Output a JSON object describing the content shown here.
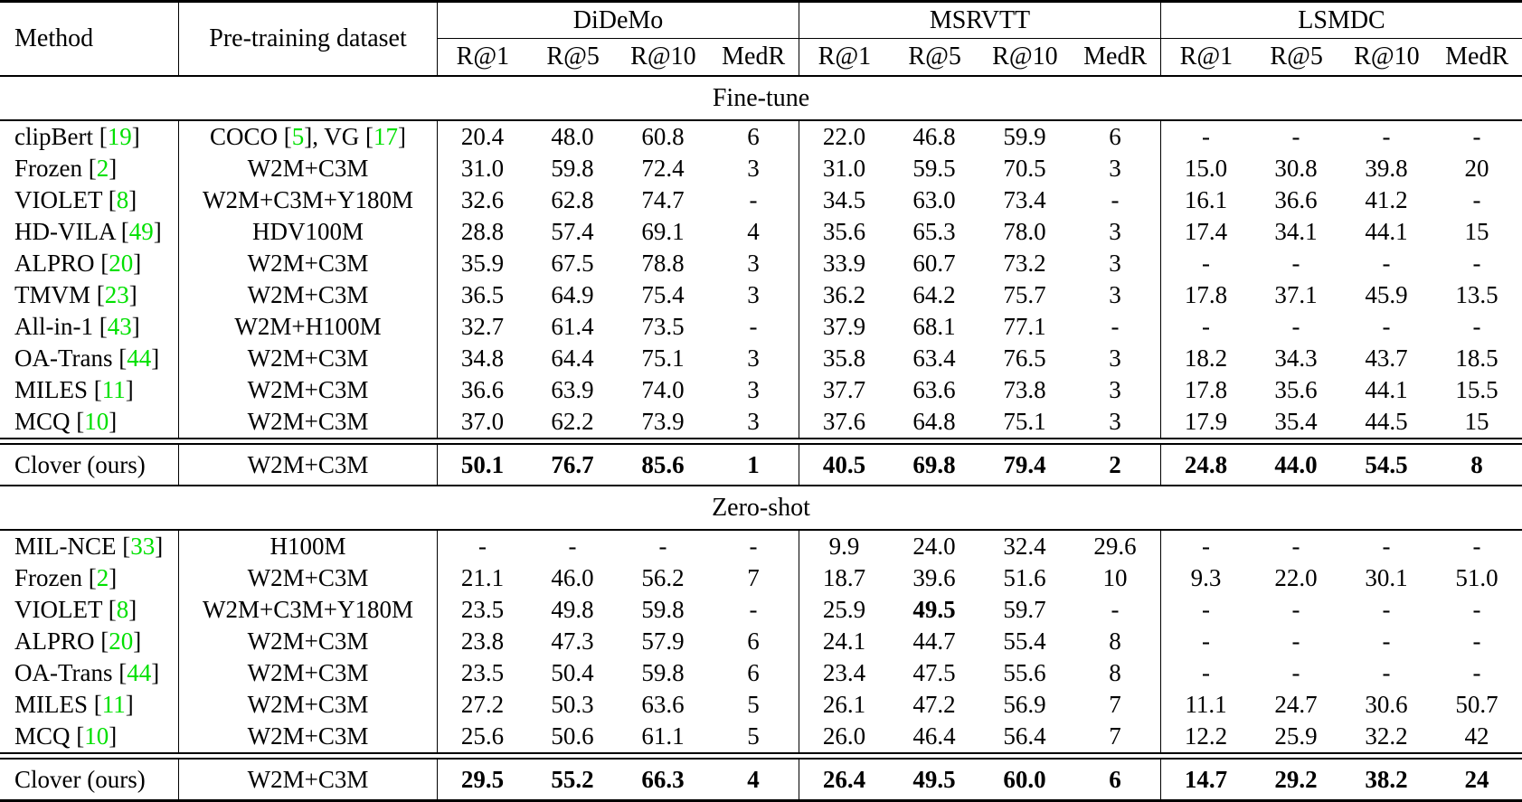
{
  "colors": {
    "citation_green": "#00E000"
  },
  "table": {
    "header": {
      "method": "Method",
      "pretrain": "Pre-training dataset"
    },
    "groups": [
      {
        "label": "DiDeMo",
        "metrics": [
          "R@1",
          "R@5",
          "R@10",
          "MedR"
        ]
      },
      {
        "label": "MSRVTT",
        "metrics": [
          "R@1",
          "R@5",
          "R@10",
          "MedR"
        ]
      },
      {
        "label": "LSMDC",
        "metrics": [
          "R@1",
          "R@5",
          "R@10",
          "MedR"
        ]
      }
    ],
    "sections": [
      {
        "label": "Fine-tune",
        "rows": [
          {
            "method": "clipBert [19]",
            "pretrain": "COCO [5], VG [17]",
            "values": [
              "20.4",
              "48.0",
              "60.8",
              "6",
              "22.0",
              "46.8",
              "59.9",
              "6",
              "-",
              "-",
              "-",
              "-"
            ]
          },
          {
            "method": "Frozen [2]",
            "pretrain": "W2M+C3M",
            "values": [
              "31.0",
              "59.8",
              "72.4",
              "3",
              "31.0",
              "59.5",
              "70.5",
              "3",
              "15.0",
              "30.8",
              "39.8",
              "20"
            ]
          },
          {
            "method": "VIOLET [8]",
            "pretrain": "W2M+C3M+Y180M",
            "values": [
              "32.6",
              "62.8",
              "74.7",
              "-",
              "34.5",
              "63.0",
              "73.4",
              "-",
              "16.1",
              "36.6",
              "41.2",
              "-"
            ]
          },
          {
            "method": "HD-VILA [49]",
            "pretrain": "HDV100M",
            "values": [
              "28.8",
              "57.4",
              "69.1",
              "4",
              "35.6",
              "65.3",
              "78.0",
              "3",
              "17.4",
              "34.1",
              "44.1",
              "15"
            ]
          },
          {
            "method": "ALPRO [20]",
            "pretrain": "W2M+C3M",
            "values": [
              "35.9",
              "67.5",
              "78.8",
              "3",
              "33.9",
              "60.7",
              "73.2",
              "3",
              "-",
              "-",
              "-",
              "-"
            ]
          },
          {
            "method": "TMVM [23]",
            "pretrain": "W2M+C3M",
            "values": [
              "36.5",
              "64.9",
              "75.4",
              "3",
              "36.2",
              "64.2",
              "75.7",
              "3",
              "17.8",
              "37.1",
              "45.9",
              "13.5"
            ]
          },
          {
            "method": "All-in-1 [43]",
            "pretrain": "W2M+H100M",
            "values": [
              "32.7",
              "61.4",
              "73.5",
              "-",
              "37.9",
              "68.1",
              "77.1",
              "-",
              "-",
              "-",
              "-",
              "-"
            ]
          },
          {
            "method": "OA-Trans [44]",
            "pretrain": "W2M+C3M",
            "values": [
              "34.8",
              "64.4",
              "75.1",
              "3",
              "35.8",
              "63.4",
              "76.5",
              "3",
              "18.2",
              "34.3",
              "43.7",
              "18.5"
            ]
          },
          {
            "method": "MILES [11]",
            "pretrain": "W2M+C3M",
            "values": [
              "36.6",
              "63.9",
              "74.0",
              "3",
              "37.7",
              "63.6",
              "73.8",
              "3",
              "17.8",
              "35.6",
              "44.1",
              "15.5"
            ]
          },
          {
            "method": "MCQ [10]",
            "pretrain": "W2M+C3M",
            "values": [
              "37.0",
              "62.2",
              "73.9",
              "3",
              "37.6",
              "64.8",
              "75.1",
              "3",
              "17.9",
              "35.4",
              "44.5",
              "15"
            ]
          }
        ],
        "final_row": {
          "method": "Clover (ours)",
          "pretrain": "W2M+C3M",
          "bold": true,
          "values": [
            "50.1",
            "76.7",
            "85.6",
            "1",
            "40.5",
            "69.8",
            "79.4",
            "2",
            "24.8",
            "44.0",
            "54.5",
            "8"
          ]
        }
      },
      {
        "label": "Zero-shot",
        "rows": [
          {
            "method": "MIL-NCE [33]",
            "pretrain": "H100M",
            "values": [
              "-",
              "-",
              "-",
              "-",
              "9.9",
              "24.0",
              "32.4",
              "29.6",
              "-",
              "-",
              "-",
              "-"
            ]
          },
          {
            "method": "Frozen [2]",
            "pretrain": "W2M+C3M",
            "values": [
              "21.1",
              "46.0",
              "56.2",
              "7",
              "18.7",
              "39.6",
              "51.6",
              "10",
              "9.3",
              "22.0",
              "30.1",
              "51.0"
            ]
          },
          {
            "method": "VIOLET [8]",
            "pretrain": "W2M+C3M+Y180M",
            "bold_idx": [
              5
            ],
            "values": [
              "23.5",
              "49.8",
              "59.8",
              "-",
              "25.9",
              "49.5",
              "59.7",
              "-",
              "-",
              "-",
              "-",
              "-"
            ]
          },
          {
            "method": "ALPRO [20]",
            "pretrain": "W2M+C3M",
            "values": [
              "23.8",
              "47.3",
              "57.9",
              "6",
              "24.1",
              "44.7",
              "55.4",
              "8",
              "-",
              "-",
              "-",
              "-"
            ]
          },
          {
            "method": "OA-Trans [44]",
            "pretrain": "W2M+C3M",
            "values": [
              "23.5",
              "50.4",
              "59.8",
              "6",
              "23.4",
              "47.5",
              "55.6",
              "8",
              "-",
              "-",
              "-",
              "-"
            ]
          },
          {
            "method": "MILES [11]",
            "pretrain": "W2M+C3M",
            "values": [
              "27.2",
              "50.3",
              "63.6",
              "5",
              "26.1",
              "47.2",
              "56.9",
              "7",
              "11.1",
              "24.7",
              "30.6",
              "50.7"
            ]
          },
          {
            "method": "MCQ [10]",
            "pretrain": "W2M+C3M",
            "values": [
              "25.6",
              "50.6",
              "61.1",
              "5",
              "26.0",
              "46.4",
              "56.4",
              "7",
              "12.2",
              "25.9",
              "32.2",
              "42"
            ]
          }
        ],
        "final_row": {
          "method": "Clover (ours)",
          "pretrain": "W2M+C3M",
          "bold": true,
          "values": [
            "29.5",
            "55.2",
            "66.3",
            "4",
            "26.4",
            "49.5",
            "60.0",
            "6",
            "14.7",
            "29.2",
            "38.2",
            "24"
          ]
        }
      }
    ]
  }
}
